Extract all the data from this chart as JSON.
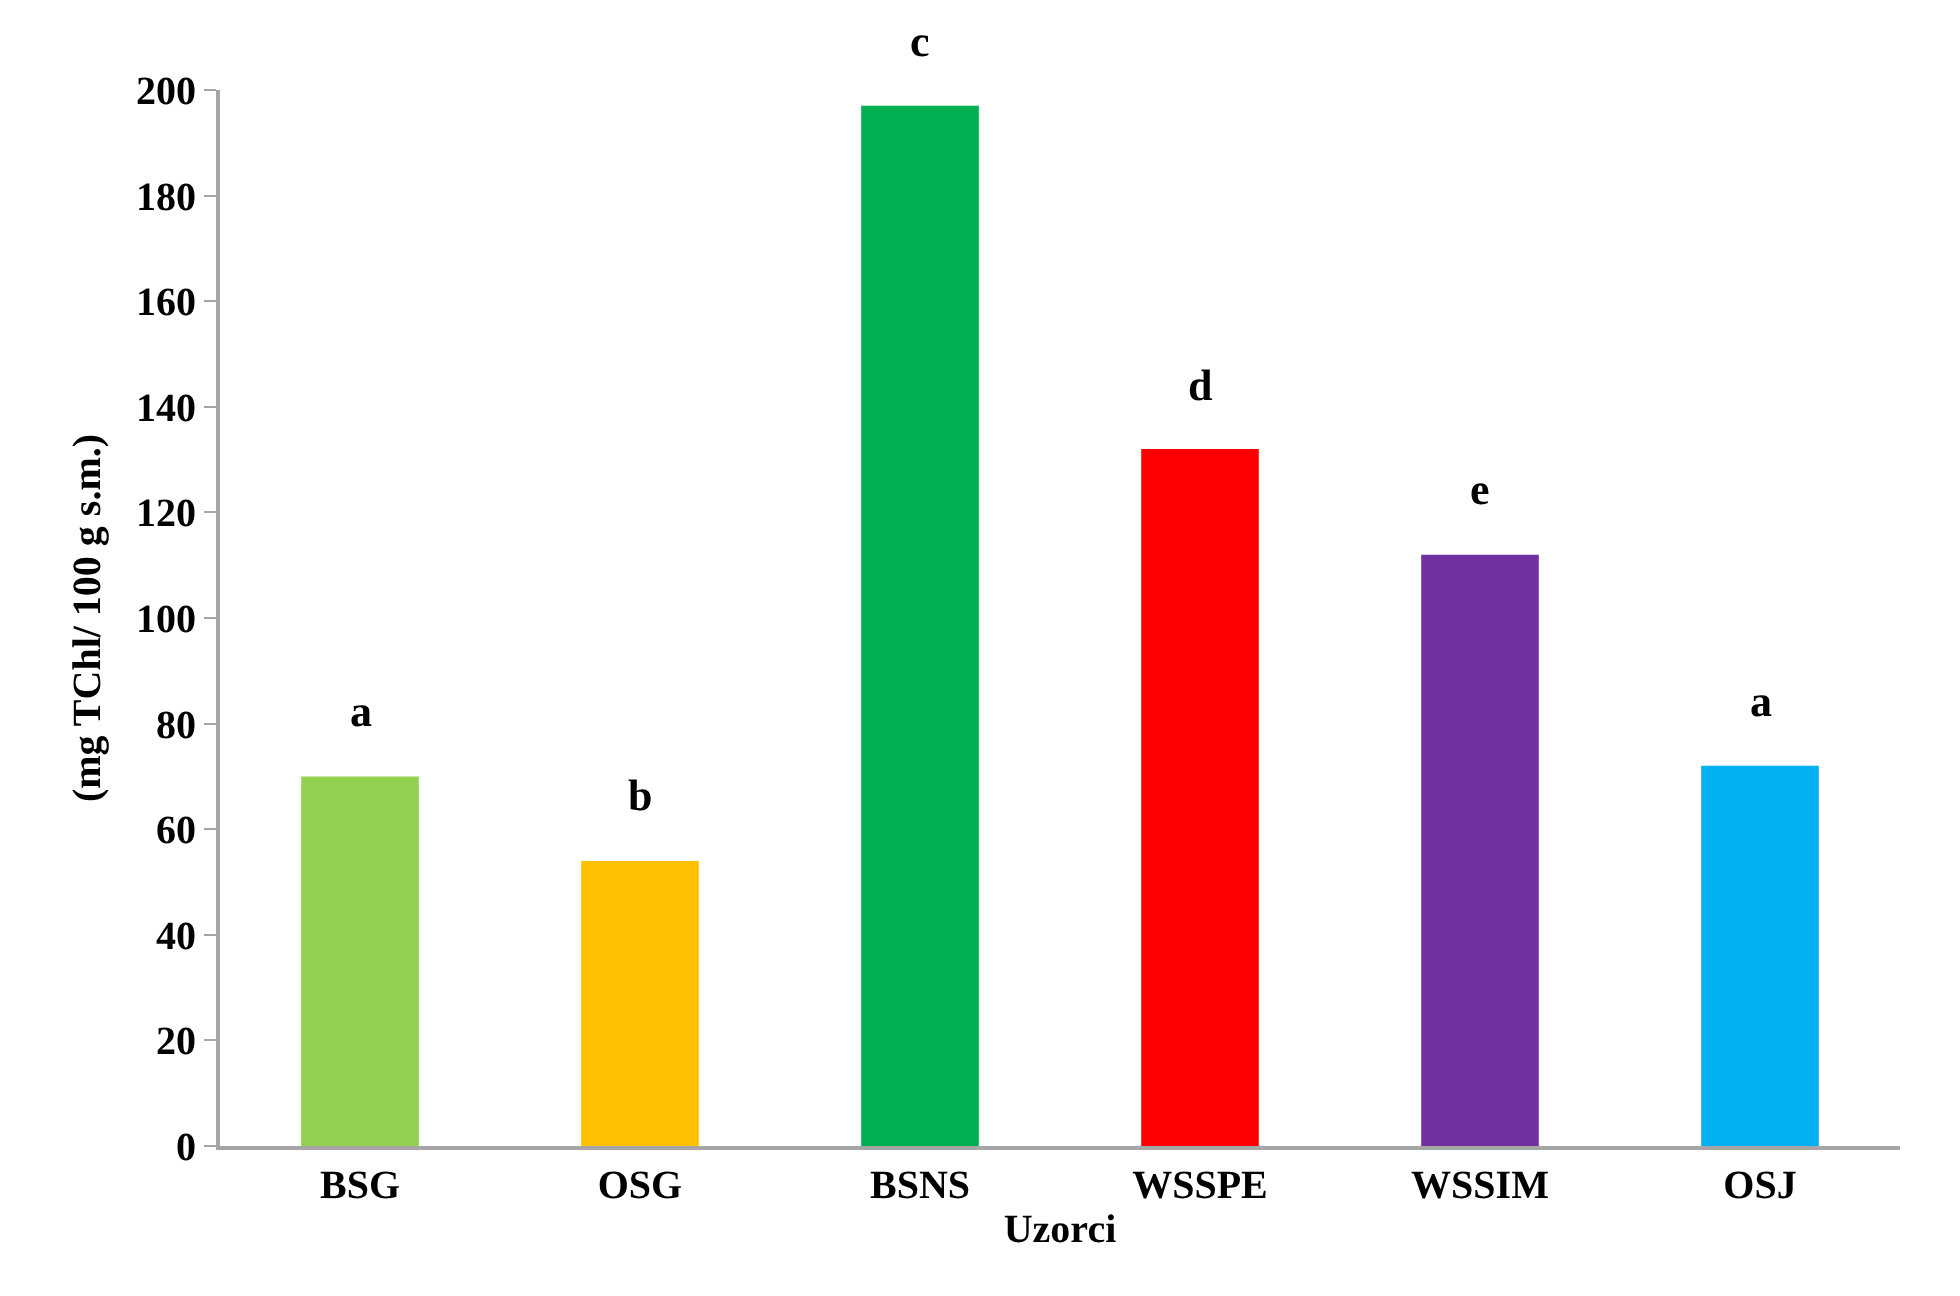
{
  "chart_data": {
    "type": "bar",
    "xlabel": "Uzorci",
    "ylabel": "(mg TChl/ 100 g s.m.)",
    "categories": [
      "BSG",
      "OSG",
      "BSNS",
      "WSSPE",
      "WSSIM",
      "OSJ"
    ],
    "values": [
      70,
      54,
      197,
      132,
      112,
      72
    ],
    "colors": [
      "#92d050",
      "#ffc000",
      "#00b050",
      "#ff0000",
      "#7030a0",
      "#00b0f0"
    ],
    "ylim": [
      0,
      200
    ],
    "yticks": [
      0,
      20,
      40,
      60,
      80,
      100,
      120,
      140,
      160,
      180,
      200
    ],
    "grid": false,
    "annotations": [
      {
        "text": "a",
        "x": "BSG",
        "y": 70
      },
      {
        "text": "b",
        "x": "OSG",
        "y": 54
      },
      {
        "text": "c",
        "x": "BSNS",
        "y": 197
      },
      {
        "text": "d",
        "x": "WSSPE",
        "y": 132
      },
      {
        "text": "e",
        "x": "WSSIM",
        "y": 112
      },
      {
        "text": "a",
        "x": "OSJ",
        "y": 72
      }
    ]
  }
}
